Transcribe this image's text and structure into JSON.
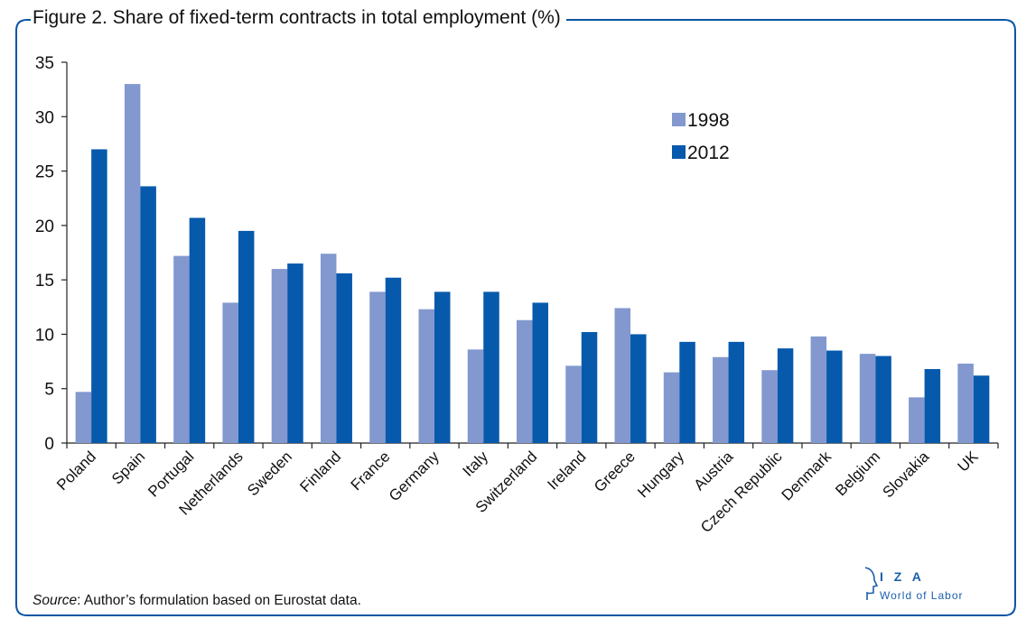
{
  "title": "Figure 2. Share of fixed-term contracts in total employment (%)",
  "source_label": "Source",
  "source_text": ": Author’s formulation based on Eurostat data.",
  "logo": {
    "text": "I Z A",
    "subtext": "World of Labor"
  },
  "colors": {
    "frame": "#0a56a5",
    "series_1998": "#8298ce",
    "series_2012": "#0759ac"
  },
  "chart_data": {
    "type": "bar",
    "categories": [
      "Poland",
      "Spain",
      "Portugal",
      "Netherlands",
      "Sweden",
      "Finland",
      "France",
      "Germany",
      "Italy",
      "Switzerland",
      "Ireland",
      "Greece",
      "Hungary",
      "Austria",
      "Czech Republic",
      "Denmark",
      "Belgium",
      "Slovakia",
      "UK"
    ],
    "series": [
      {
        "name": "1998",
        "values": [
          4.7,
          33.0,
          17.2,
          12.9,
          16.0,
          17.4,
          13.9,
          12.3,
          8.6,
          11.3,
          7.1,
          12.4,
          6.5,
          7.9,
          6.7,
          9.8,
          8.2,
          4.2,
          7.3
        ]
      },
      {
        "name": "2012",
        "values": [
          27.0,
          23.6,
          20.7,
          19.5,
          16.5,
          15.6,
          15.2,
          13.9,
          13.9,
          12.9,
          10.2,
          10.0,
          9.3,
          9.3,
          8.7,
          8.5,
          8.0,
          6.8,
          6.2
        ]
      }
    ],
    "yticks": [
      0,
      5,
      10,
      15,
      20,
      25,
      30,
      35
    ],
    "ylim": [
      0,
      35
    ],
    "xlabel": "",
    "ylabel": "",
    "legend_position": "top-right",
    "grid": false
  }
}
